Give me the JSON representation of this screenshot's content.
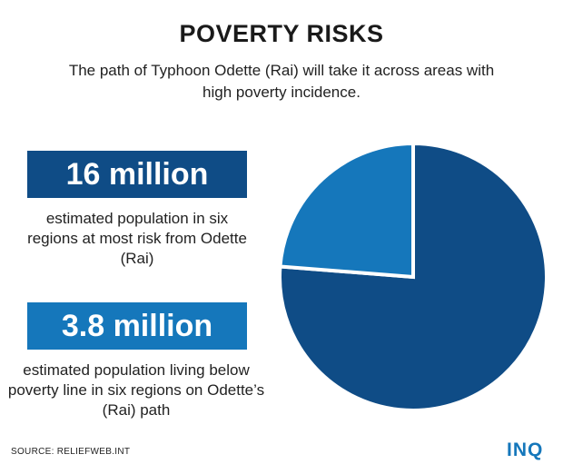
{
  "title": "POVERTY RISKS",
  "subtitle": "The path of Typhoon Odette (Rai) will take it across areas with high poverty incidence.",
  "stats": [
    {
      "value": "16 million",
      "description": "estimated population in six regions at most risk from Odette (Rai)"
    },
    {
      "value": "3.8 million",
      "description": "estimated population living below poverty line in six regions on Odette’s (Rai) path"
    }
  ],
  "source": "SOURCE: RELIEFWEB.INT",
  "logo": "INQ",
  "colors": {
    "dark_blue": "#0f4c86",
    "light_blue": "#1577bb"
  },
  "chart_data": {
    "type": "pie",
    "title": "",
    "slices": [
      {
        "value": 12.2,
        "color": "#0f4c86"
      },
      {
        "value": 3.8,
        "color": "#1577bb"
      }
    ]
  }
}
